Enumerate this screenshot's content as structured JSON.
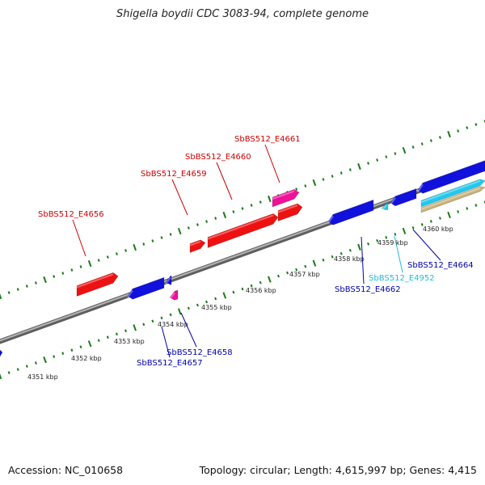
{
  "title": "Shigella boydii CDC 3083-94, complete genome",
  "footer": {
    "accession": "Accession: NC_010658",
    "topology": "Topology: circular; Length: 4,615,997 bp; Genes: 4,415"
  },
  "colors": {
    "backbone": "#8c8c8c",
    "ticks": "#1a7a1a",
    "forward_gene": "#ee1111",
    "forward_rna": "#ee1199",
    "reverse_gene": "#1111dd",
    "reverse_misc": "#22c8ee",
    "other_feature": "#c8b27a",
    "forward_label": "#cc0000",
    "reverse_label": "#0000aa",
    "misc_label": "#22bbdd"
  },
  "scale_labels": [
    "4351 kbp",
    "4352 kbp",
    "4353 kbp",
    "4354 kbp",
    "4355 kbp",
    "4356 kbp",
    "4357 kbp",
    "4358 kbp",
    "4359 kbp",
    "4360 kbp"
  ],
  "forward_genes": [
    {
      "label": "SbBS512_E4656",
      "kind": "gene"
    },
    {
      "label": "SbBS512_E4659",
      "kind": "gene"
    },
    {
      "label": "SbBS512_E4660",
      "kind": "gene"
    },
    {
      "label": "SbBS512_E4661",
      "kind": "rna"
    }
  ],
  "reverse_genes": [
    {
      "label": "SbBS512_E4657",
      "kind": "gene"
    },
    {
      "label": "SbBS512_E4658",
      "kind": "rna"
    },
    {
      "label": "SbBS512_E4662",
      "kind": "gene"
    },
    {
      "label": "SbBS512_E4952",
      "kind": "misc"
    },
    {
      "label": "SbBS512_E4664",
      "kind": "gene"
    }
  ]
}
